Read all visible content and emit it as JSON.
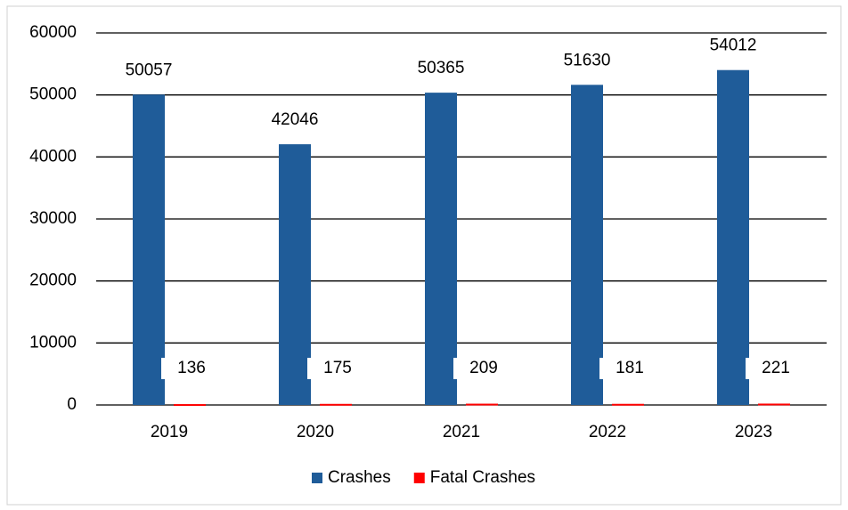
{
  "chart_data": {
    "type": "bar",
    "categories": [
      "2019",
      "2020",
      "2021",
      "2022",
      "2023"
    ],
    "series": [
      {
        "name": "Crashes",
        "color": "#1f5c99",
        "values": [
          50057,
          42046,
          50365,
          51630,
          54012
        ]
      },
      {
        "name": "Fatal Crashes",
        "color": "#ff0000",
        "values": [
          136,
          175,
          209,
          181,
          221
        ]
      }
    ],
    "ylim": [
      0,
      60000
    ],
    "yticks": [
      0,
      10000,
      20000,
      30000,
      40000,
      50000,
      60000
    ],
    "grid": true,
    "legend": "bottom"
  }
}
